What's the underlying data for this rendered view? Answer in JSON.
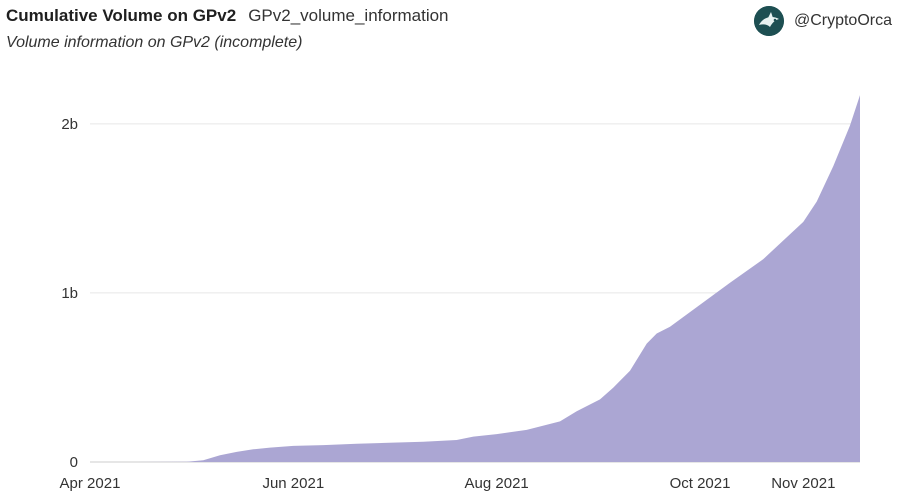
{
  "header": {
    "title": "Cumulative Volume on GPv2",
    "query_name": "GPv2_volume_information",
    "subtitle": "Volume information on GPv2 (incomplete)"
  },
  "author": {
    "name": "@CryptoOrca",
    "avatar_icon": "orca-avatar-icon"
  },
  "chart_data": {
    "type": "area",
    "title": "Cumulative Volume on GPv2",
    "subtitle": "Volume information on GPv2 (incomplete)",
    "xlabel": "",
    "ylabel": "",
    "x_ticks": [
      "Apr 2021",
      "Jun 2021",
      "Aug 2021",
      "Oct 2021",
      "Nov 2021"
    ],
    "y_ticks": [
      "0",
      "1b",
      "2b"
    ],
    "ylim": [
      0,
      2200000000
    ],
    "xlim": [
      "2021-04-01",
      "2021-11-18"
    ],
    "grid": true,
    "legend": "none",
    "color": "#aba6d3",
    "series": [
      {
        "x": [
          "2021-04-01",
          "2021-04-15",
          "2021-04-30",
          "2021-05-05",
          "2021-05-10",
          "2021-05-15",
          "2021-05-20",
          "2021-05-25",
          "2021-06-01",
          "2021-06-10",
          "2021-06-20",
          "2021-07-01",
          "2021-07-10",
          "2021-07-20",
          "2021-07-25",
          "2021-08-01",
          "2021-08-10",
          "2021-08-20",
          "2021-08-25",
          "2021-09-01",
          "2021-09-05",
          "2021-09-10",
          "2021-09-15",
          "2021-09-18",
          "2021-09-22",
          "2021-10-01",
          "2021-10-10",
          "2021-10-20",
          "2021-11-01",
          "2021-11-05",
          "2021-11-10",
          "2021-11-15",
          "2021-11-18"
        ],
        "y": [
          0,
          0,
          2000000,
          10000000,
          40000000,
          60000000,
          75000000,
          85000000,
          95000000,
          100000000,
          108000000,
          115000000,
          120000000,
          130000000,
          150000000,
          165000000,
          190000000,
          240000000,
          300000000,
          370000000,
          440000000,
          540000000,
          700000000,
          760000000,
          800000000,
          930000000,
          1060000000,
          1200000000,
          1420000000,
          1540000000,
          1750000000,
          1990000000,
          2170000000
        ]
      }
    ]
  }
}
